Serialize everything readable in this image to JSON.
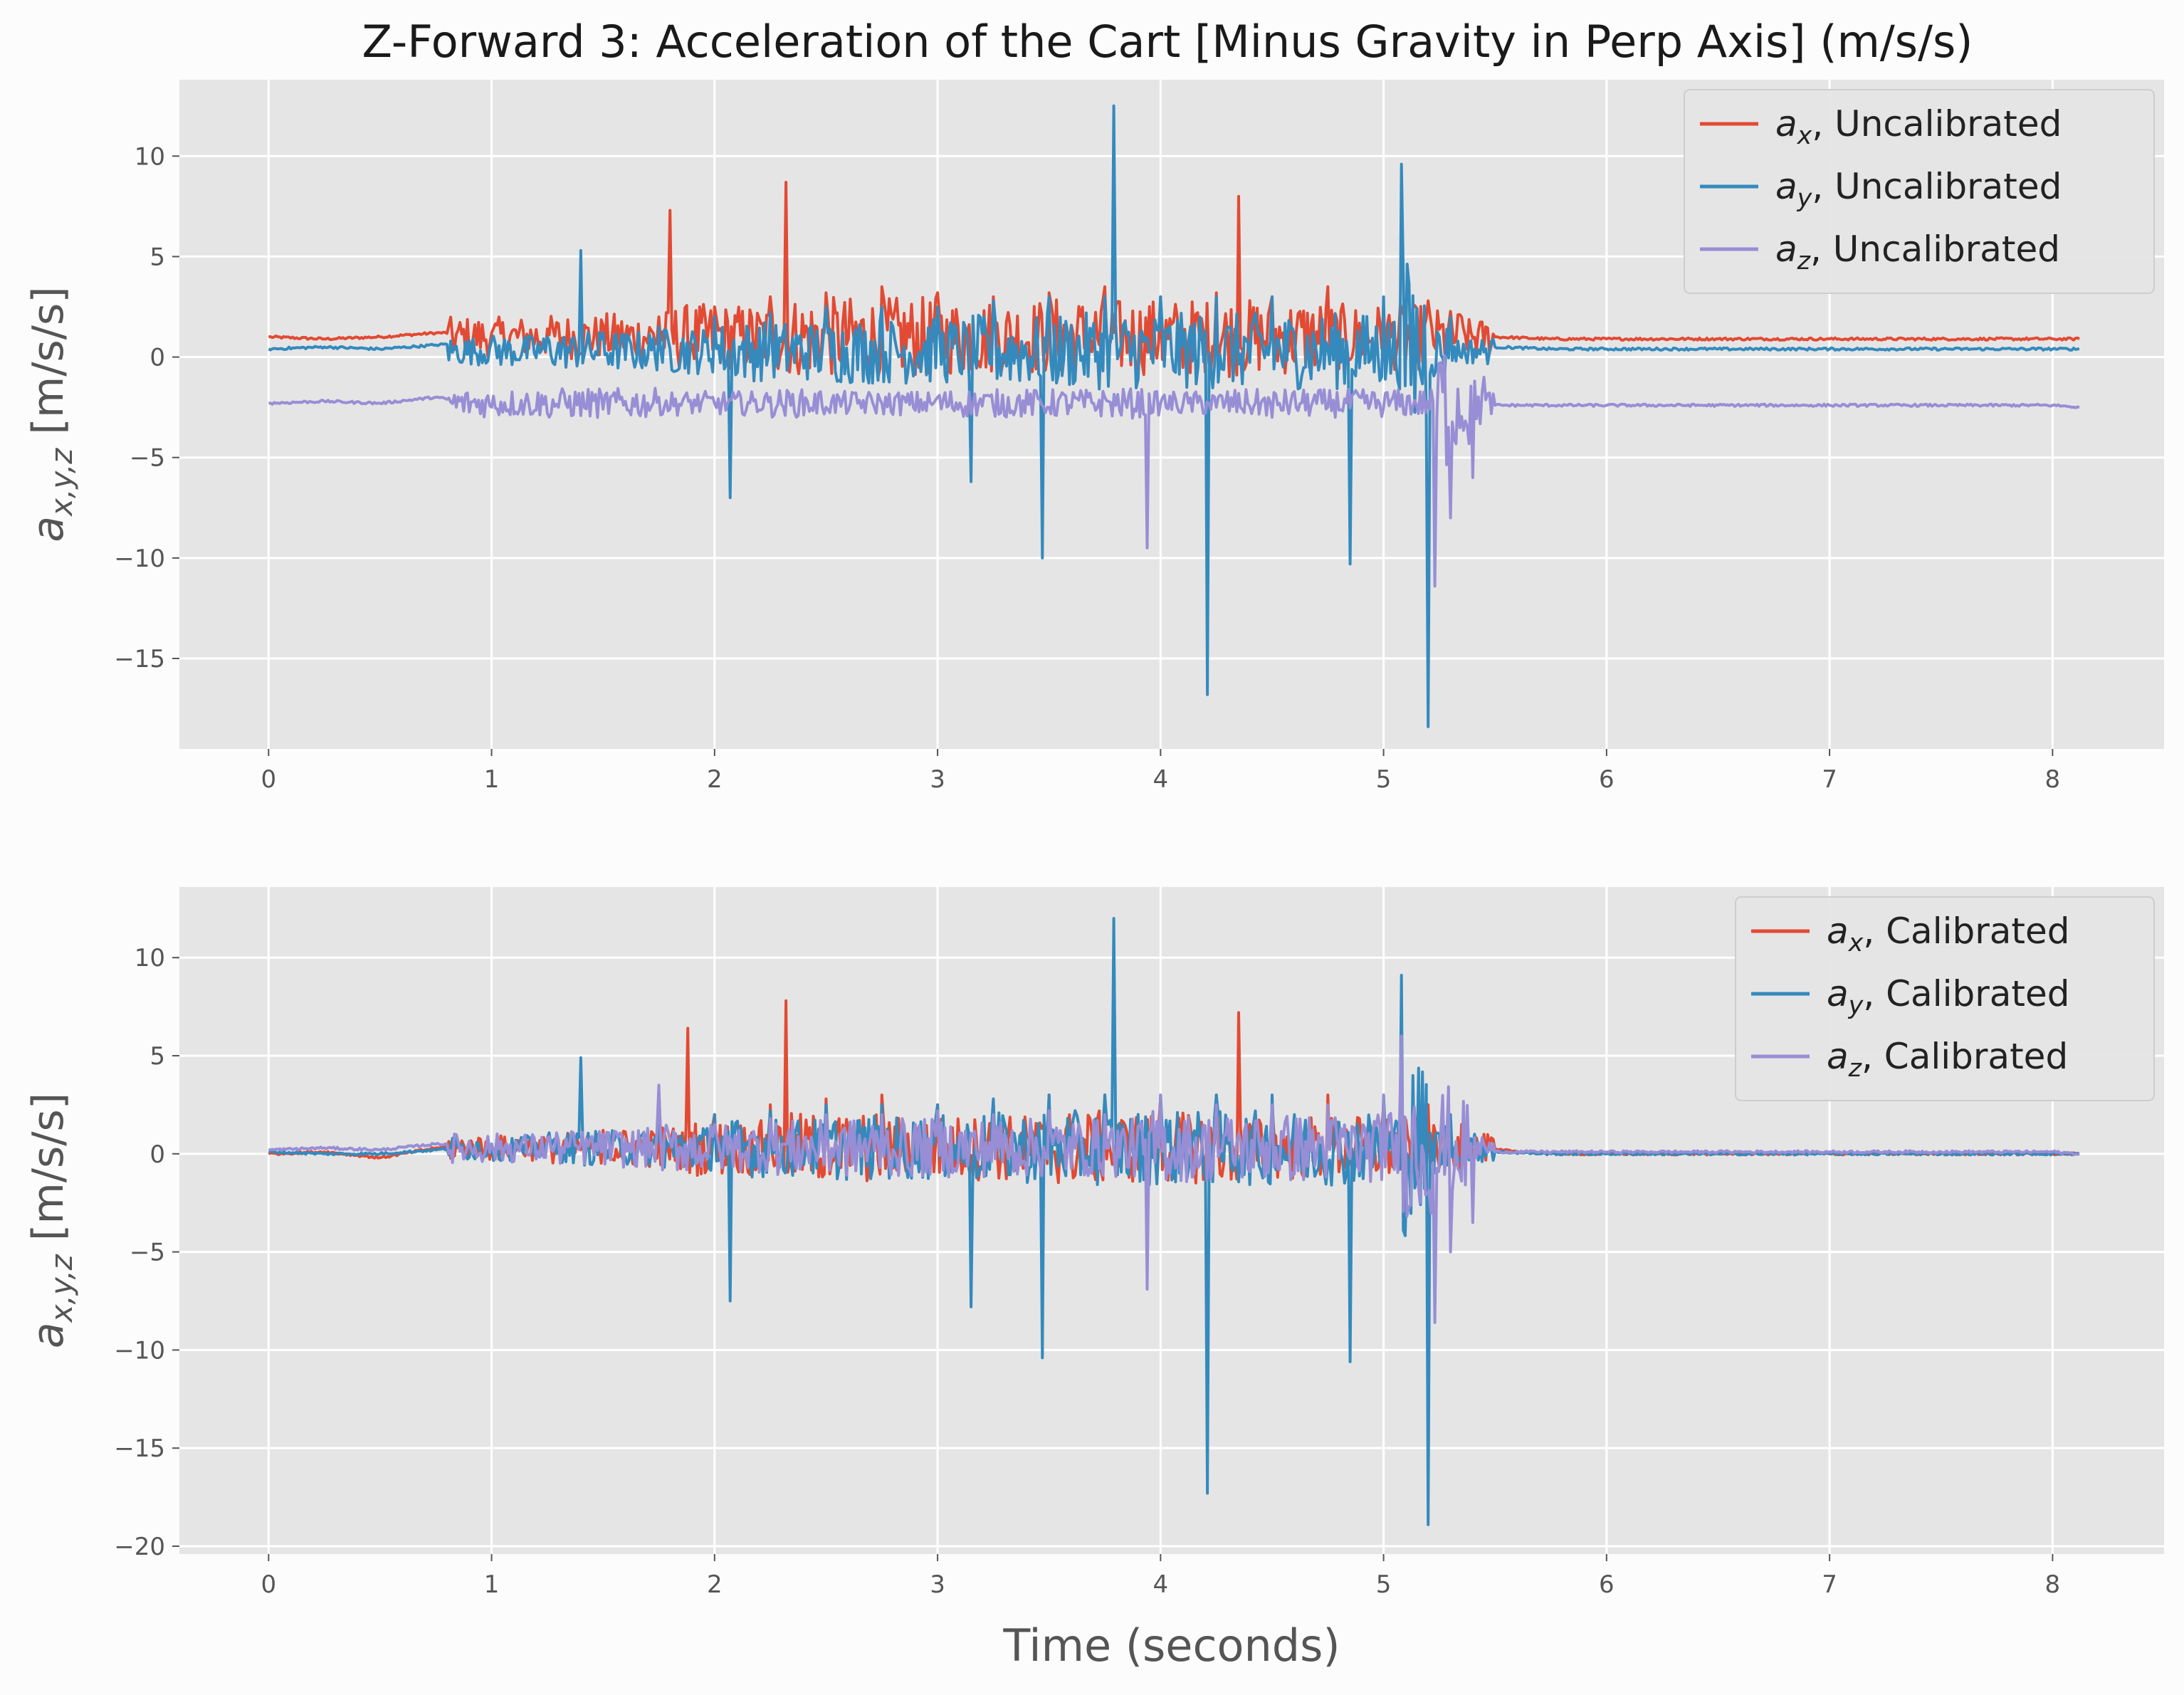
{
  "figure": {
    "title": "Z-Forward 3: Acceleration of the Cart [Minus Gravity in Perp Axis] (m/s/s)"
  },
  "colors": {
    "ax": "#e24a33",
    "ay": "#348abd",
    "az": "#988ed5",
    "axes_bg": "#e5e5e5",
    "grid": "#ffffff",
    "tick_text": "#555555"
  },
  "chart_data": [
    {
      "type": "line",
      "title": "",
      "xlabel": "",
      "ylabel": "a_{x,y,z} [m/s/s]",
      "xlim": [
        -0.4,
        8.5
      ],
      "ylim": [
        -19.5,
        13.8
      ],
      "xticks": [
        0,
        1,
        2,
        3,
        4,
        5,
        6,
        7,
        8
      ],
      "yticks": [
        -15,
        -10,
        -5,
        0,
        5,
        10
      ],
      "grid": true,
      "legend_position": "top-right",
      "series": [
        {
          "name": "a_x, Uncalibrated",
          "sym": "x",
          "label": "Uncalibrated",
          "color_key": "ax",
          "x": [
            0,
            0.25,
            0.5,
            0.75,
            1,
            1.25,
            1.5,
            1.75,
            1.8,
            2,
            2.25,
            2.32,
            2.5,
            2.75,
            3,
            3.25,
            3.5,
            3.75,
            4,
            4.25,
            4.35,
            4.5,
            4.75,
            5,
            5.2,
            5.35,
            5.5,
            5.75,
            6,
            6.5,
            7,
            7.5,
            8,
            8.12
          ],
          "y": [
            1.0,
            0.9,
            1.0,
            1.2,
            1.2,
            1.4,
            1.6,
            2.0,
            7.3,
            2.5,
            3.0,
            8.7,
            3.2,
            3.5,
            3.2,
            3.0,
            3.2,
            3.5,
            3.0,
            3.2,
            8.0,
            3.0,
            3.5,
            2.5,
            2.8,
            2.0,
            1.0,
            0.9,
            0.9,
            0.9,
            0.9,
            0.9,
            0.9,
            0.9
          ]
        },
        {
          "name": "a_y, Uncalibrated",
          "sym": "y",
          "label": "Uncalibrated",
          "color_key": "ay",
          "x": [
            0,
            0.25,
            0.5,
            0.75,
            1,
            1.25,
            1.4,
            1.5,
            1.75,
            2,
            2.07,
            2.25,
            2.5,
            2.75,
            3,
            3.15,
            3.25,
            3.47,
            3.5,
            3.75,
            3.79,
            4,
            4.21,
            4.25,
            4.5,
            4.85,
            5,
            5.08,
            5.2,
            5.3,
            5.5,
            5.75,
            6,
            6.5,
            7,
            7.5,
            8,
            8.12
          ],
          "y": [
            0.4,
            0.5,
            0.4,
            0.6,
            0.8,
            1.0,
            5.3,
            1.2,
            1.5,
            2.0,
            -7.0,
            2.2,
            2.5,
            2.5,
            2.5,
            -6.2,
            2.8,
            -10.0,
            3.0,
            3.0,
            12.5,
            3.0,
            -16.8,
            3.0,
            3.0,
            -10.3,
            3.0,
            9.6,
            -18.4,
            2.0,
            0.5,
            0.4,
            0.4,
            0.4,
            0.4,
            0.4,
            0.4,
            0.4
          ]
        },
        {
          "name": "a_z, Uncalibrated",
          "sym": "z",
          "label": "Uncalibrated",
          "color_key": "az",
          "x": [
            0,
            0.25,
            0.5,
            0.75,
            1,
            1.25,
            1.5,
            1.75,
            2,
            2.25,
            2.5,
            2.75,
            3,
            3.25,
            3.5,
            3.75,
            3.94,
            4,
            4.25,
            4.5,
            4.75,
            5,
            5.23,
            5.3,
            5.4,
            5.45,
            5.5,
            6,
            6.5,
            7,
            7.5,
            8,
            8.12
          ],
          "y": [
            -2.3,
            -2.2,
            -2.3,
            -2.0,
            -2.5,
            -2.8,
            -2.6,
            -2.0,
            -2.3,
            -2.0,
            -2.5,
            -2.3,
            -2.0,
            -2.5,
            -2.5,
            -2.0,
            -9.5,
            -2.3,
            -2.5,
            -3.0,
            -2.5,
            -2.5,
            -11.4,
            -8.0,
            -6.0,
            -1.0,
            -2.4,
            -2.4,
            -2.4,
            -2.4,
            -2.4,
            -2.4,
            -2.5
          ]
        }
      ]
    },
    {
      "type": "line",
      "title": "",
      "xlabel": "Time (seconds)",
      "ylabel": "a_{x,y,z} [m/s/s]",
      "xlim": [
        -0.4,
        8.5
      ],
      "ylim": [
        -20.4,
        13.6
      ],
      "xticks": [
        0,
        1,
        2,
        3,
        4,
        5,
        6,
        7,
        8
      ],
      "yticks": [
        -20,
        -15,
        -10,
        -5,
        0,
        5,
        10
      ],
      "grid": true,
      "legend_position": "top-right",
      "series": [
        {
          "name": "a_x, Calibrated",
          "sym": "x",
          "label": "Calibrated",
          "color_key": "ax",
          "x": [
            0,
            0.25,
            0.5,
            0.75,
            1,
            1.25,
            1.5,
            1.75,
            1.88,
            2,
            2.25,
            2.32,
            2.5,
            2.75,
            3,
            3.25,
            3.5,
            3.75,
            4,
            4.25,
            4.35,
            4.5,
            4.75,
            5,
            5.2,
            5.35,
            5.5,
            5.75,
            6,
            6.5,
            7,
            7.5,
            8,
            8.12
          ],
          "y": [
            0.0,
            0.1,
            -0.2,
            0.3,
            0.5,
            0.8,
            1.2,
            1.5,
            6.4,
            2.0,
            2.5,
            7.8,
            2.8,
            3.0,
            2.5,
            2.6,
            3.0,
            3.0,
            2.8,
            3.0,
            7.2,
            2.5,
            3.0,
            2.5,
            2.5,
            1.5,
            0.2,
            0.0,
            0.0,
            0.0,
            0.0,
            0.0,
            0.0,
            0.0
          ]
        },
        {
          "name": "a_y, Calibrated",
          "sym": "y",
          "label": "Calibrated",
          "color_key": "ay",
          "x": [
            0,
            0.25,
            0.5,
            0.75,
            1,
            1.25,
            1.4,
            1.5,
            1.75,
            2,
            2.07,
            2.25,
            2.5,
            2.75,
            3,
            3.15,
            3.25,
            3.47,
            3.5,
            3.75,
            3.79,
            4,
            4.21,
            4.25,
            4.5,
            4.85,
            5,
            5.08,
            5.2,
            5.3,
            5.5,
            5.75,
            6,
            6.5,
            7,
            7.5,
            8,
            8.12
          ],
          "y": [
            0.1,
            0.0,
            0.0,
            0.2,
            0.5,
            0.8,
            4.9,
            1.0,
            1.5,
            2.0,
            -7.5,
            2.2,
            2.5,
            2.5,
            2.5,
            -7.8,
            2.8,
            -10.4,
            3.0,
            3.0,
            12.0,
            3.0,
            -17.3,
            3.0,
            3.0,
            -10.6,
            3.0,
            9.1,
            -18.9,
            2.0,
            0.1,
            0.0,
            0.0,
            0.0,
            0.0,
            0.0,
            0.0,
            0.0
          ]
        },
        {
          "name": "a_z, Calibrated",
          "sym": "z",
          "label": "Calibrated",
          "color_key": "az",
          "x": [
            0,
            0.25,
            0.5,
            0.75,
            1,
            1.25,
            1.5,
            1.75,
            2,
            2.25,
            2.5,
            2.75,
            3,
            3.25,
            3.5,
            3.75,
            3.94,
            4,
            4.25,
            4.5,
            4.75,
            5,
            5.08,
            5.23,
            5.3,
            5.4,
            5.45,
            5.5,
            6,
            6.5,
            7,
            7.5,
            8,
            8.12
          ],
          "y": [
            0.2,
            0.3,
            0.2,
            0.5,
            0.5,
            0.8,
            1.0,
            3.5,
            1.5,
            1.8,
            2.0,
            2.0,
            2.2,
            2.0,
            2.2,
            2.0,
            -6.9,
            3.0,
            2.5,
            2.5,
            2.5,
            3.0,
            6.0,
            -8.6,
            -5.0,
            -3.5,
            0.5,
            0.1,
            0.1,
            0.1,
            0.1,
            0.1,
            0.1,
            0.0
          ]
        }
      ]
    }
  ]
}
